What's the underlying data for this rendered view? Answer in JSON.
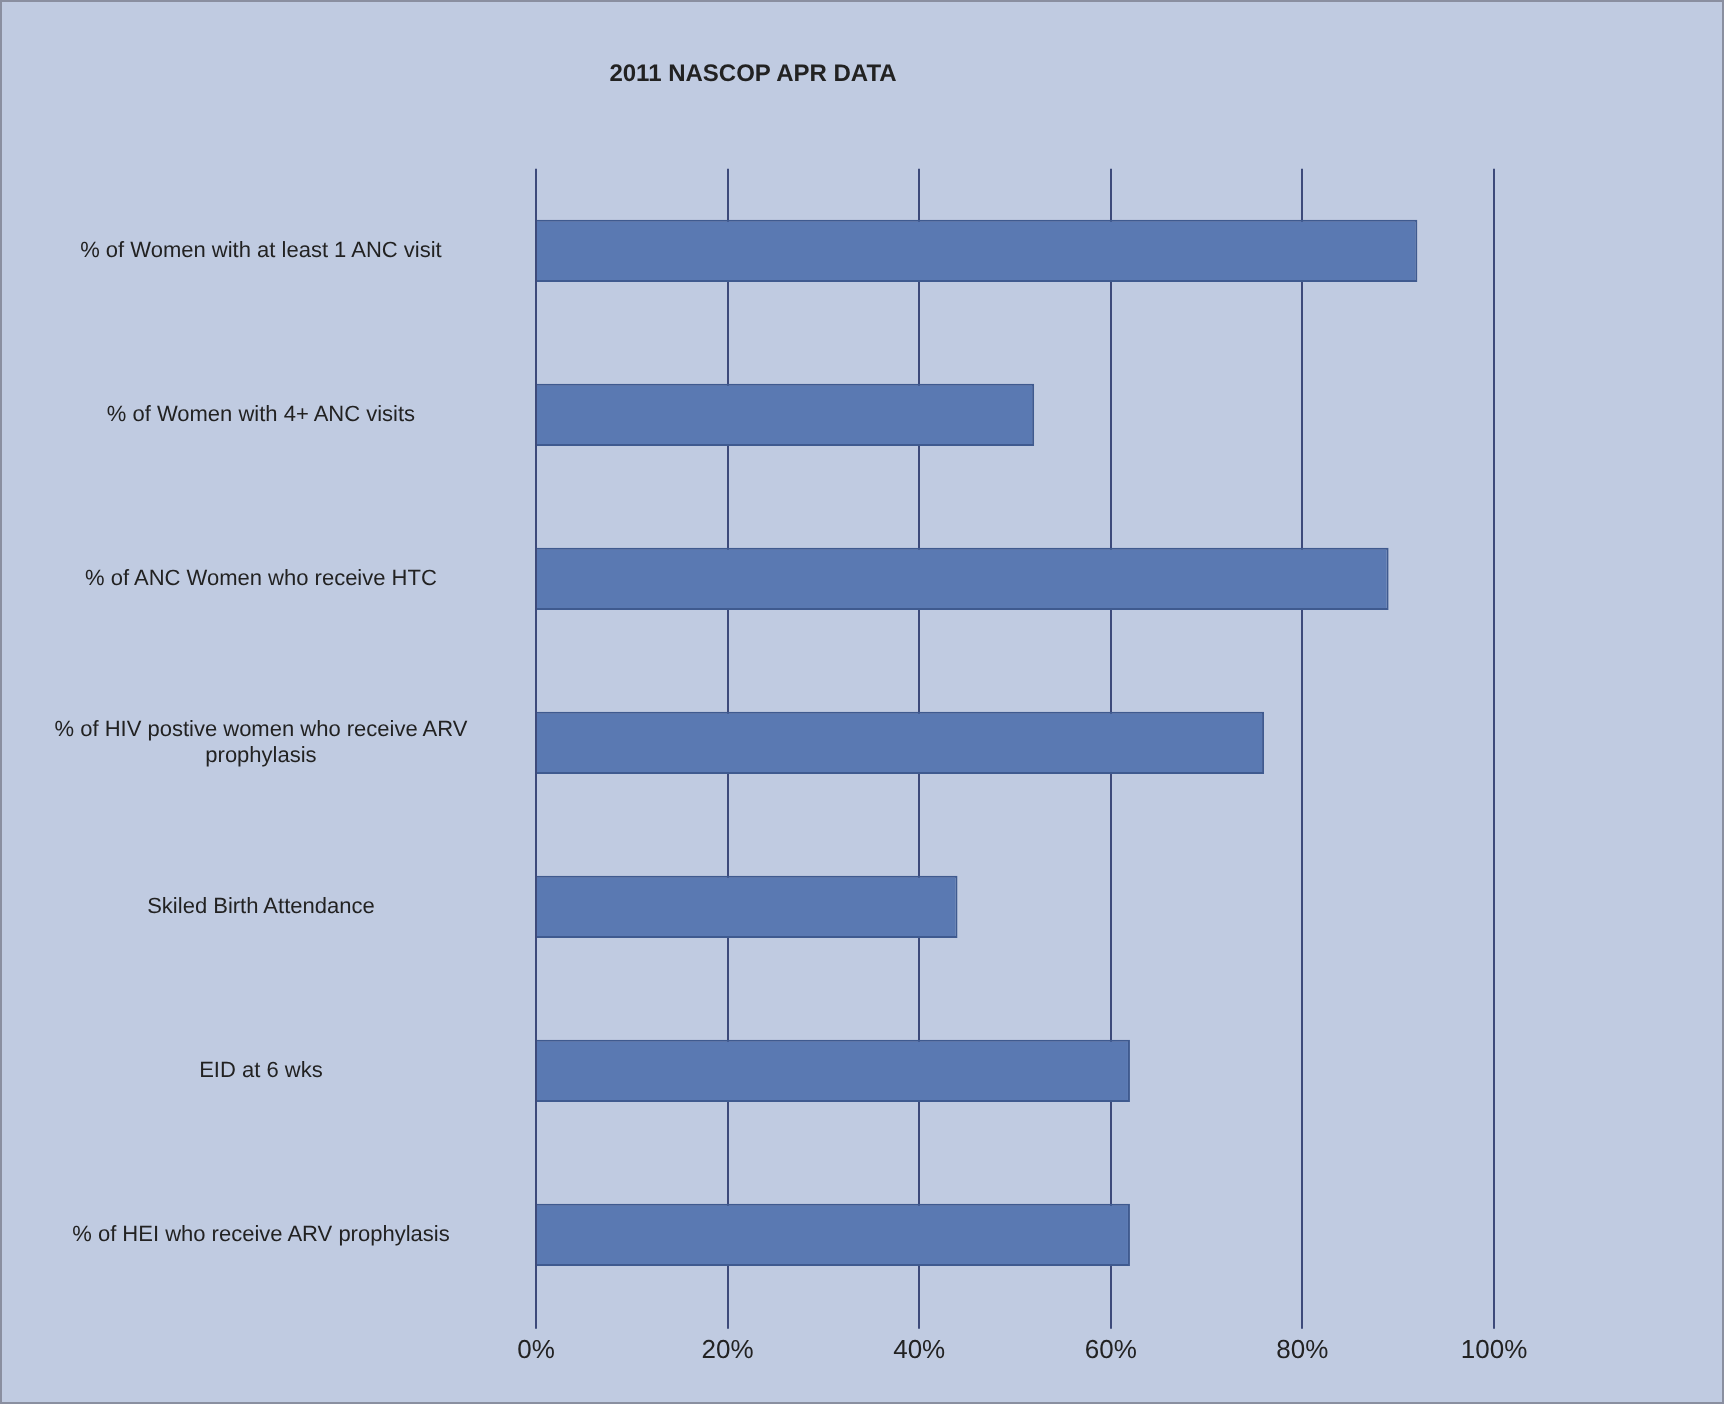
{
  "chart_data": {
    "type": "bar",
    "orientation": "horizontal",
    "title": "2011 NASCOP APR DATA",
    "categories": [
      "% of Women with at least 1 ANC visit",
      "% of Women with 4+ ANC visits",
      "% of ANC Women who receive HTC",
      "% of HIV postive women who receive ARV prophylasis",
      "Skiled Birth Attendance",
      "EID at 6 wks",
      "% of HEI who receive ARV prophylasis"
    ],
    "values": [
      92,
      52,
      89,
      76,
      44,
      62,
      62
    ],
    "color": "#5a79b2",
    "xlim": [
      0,
      100
    ],
    "xticks": [
      {
        "value": 0,
        "label": "0%"
      },
      {
        "value": 20,
        "label": "20%"
      },
      {
        "value": 40,
        "label": "40%"
      },
      {
        "value": 60,
        "label": "60%"
      },
      {
        "value": 80,
        "label": "80%"
      },
      {
        "value": 100,
        "label": "100%"
      }
    ],
    "grid": "x",
    "legend": false
  }
}
